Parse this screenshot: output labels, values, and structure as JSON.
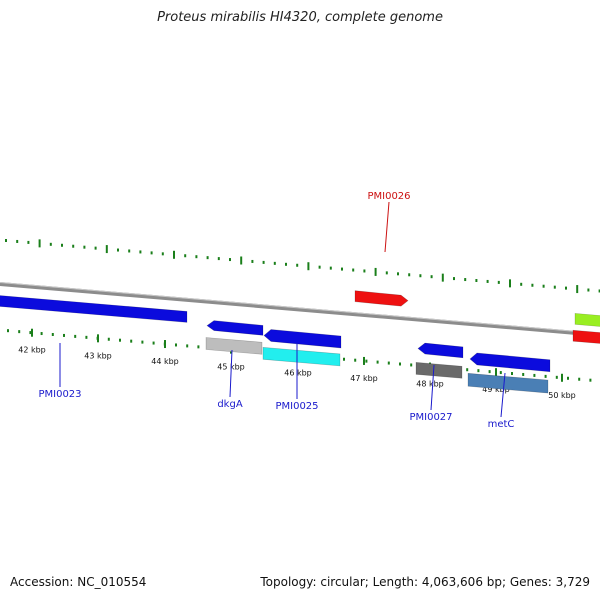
{
  "title": "Proteus mirabilis HI4320, complete genome",
  "footer": {
    "accession": "Accession: NC_010554",
    "summary": "Topology: circular; Length: 4,063,606 bp; Genes: 3,729"
  },
  "colors": {
    "backbone": "#8c8c8c",
    "tick": "#1a7f1a",
    "gene_label": "#1a1acc",
    "highlight_label": "#cc1111"
  },
  "ticks": [
    {
      "label": "42 kbp"
    },
    {
      "label": "43 kbp"
    },
    {
      "label": "44 kbp"
    },
    {
      "label": "45 kbp"
    },
    {
      "label": "46 kbp"
    },
    {
      "label": "47 kbp"
    },
    {
      "label": "48 kbp"
    },
    {
      "label": "49 kbp"
    },
    {
      "label": "50 kbp"
    }
  ],
  "gene_labels": [
    {
      "name": "PMI0023",
      "color": "#1a1acc"
    },
    {
      "name": "dkgA",
      "color": "#1a1acc"
    },
    {
      "name": "PMI0025",
      "color": "#1a1acc"
    },
    {
      "name": "PMI0026",
      "color": "#cc1111"
    },
    {
      "name": "PMI0027",
      "color": "#1a1acc"
    },
    {
      "name": "metC",
      "color": "#1a1acc"
    }
  ],
  "features": [
    {
      "name": "PMI0023",
      "color": "#0b0bdd"
    },
    {
      "name": "dkgA",
      "color": "#0b0bdd"
    },
    {
      "name": "dkgA-box",
      "color": "#bdbdbd"
    },
    {
      "name": "PMI0025",
      "color": "#0b0bdd"
    },
    {
      "name": "PMI0025-box",
      "color": "#22eeee"
    },
    {
      "name": "PMI0026",
      "color": "#ee1111"
    },
    {
      "name": "PMI0027",
      "color": "#0b0bdd"
    },
    {
      "name": "PMI0027-box",
      "color": "#6a6a6a"
    },
    {
      "name": "metC",
      "color": "#0b0bdd"
    },
    {
      "name": "metC-box",
      "color": "#4a7fb5"
    },
    {
      "name": "edge-green",
      "color": "#99ee22"
    },
    {
      "name": "edge-red",
      "color": "#ee1111"
    }
  ]
}
